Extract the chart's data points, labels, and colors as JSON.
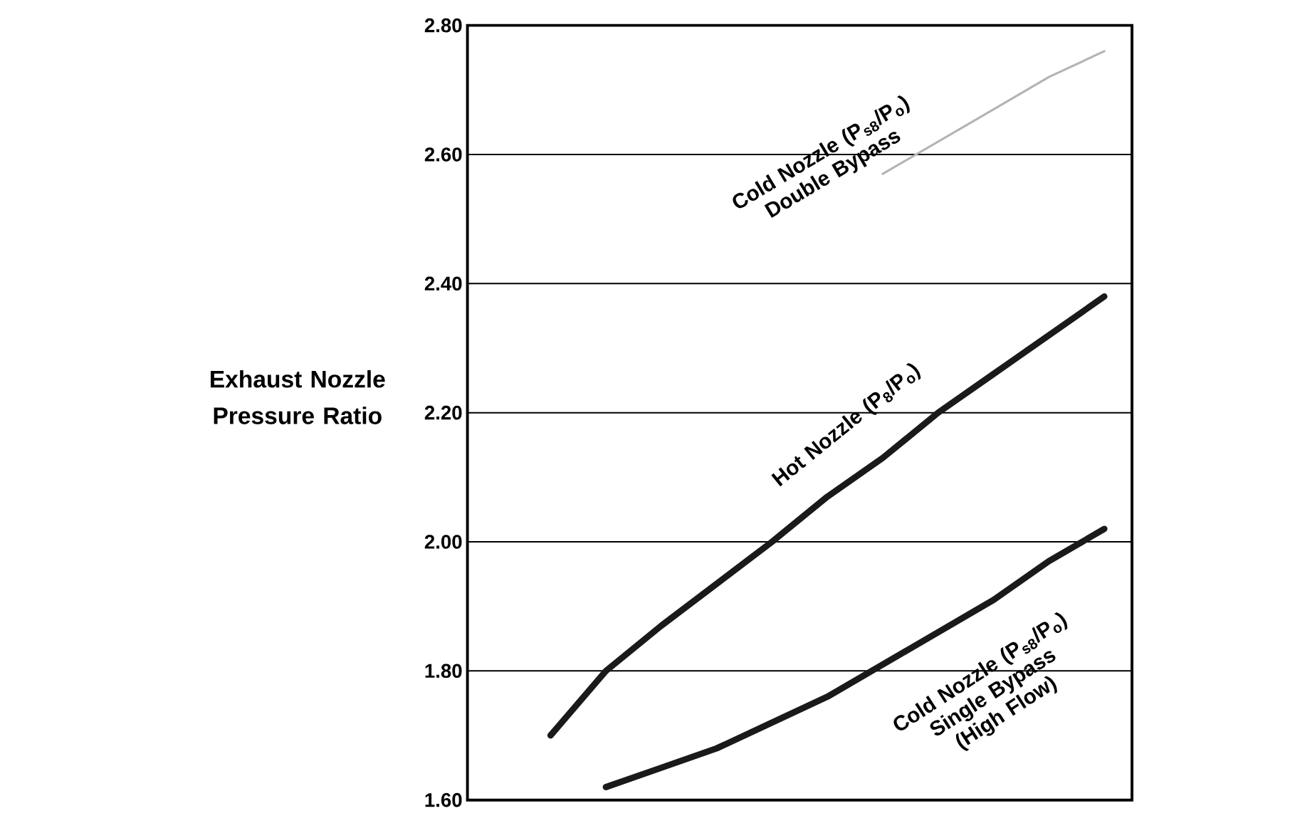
{
  "chart_data": {
    "type": "line",
    "ylabel": "Exhaust Nozzle Pressure Ratio",
    "categories": [
      null,
      null,
      null,
      null,
      null,
      null,
      null,
      null,
      null,
      null,
      null,
      null
    ],
    "series": [
      {
        "name": "Cold Nozzle (P$_{s8}$/P$_{o}$) Double Bypass",
        "color": "#b4b4b4",
        "values": [
          null,
          null,
          null,
          null,
          null,
          null,
          null,
          2.57,
          2.62,
          2.67,
          2.72,
          2.76
        ]
      },
      {
        "name": "Hot Nozzle (P$_{8}$/P$_{o}$)",
        "color": "#1a1a1a",
        "values": [
          null,
          1.7,
          1.8,
          1.87,
          1.935,
          2.0,
          2.07,
          2.13,
          2.2,
          2.26,
          2.32,
          2.38
        ]
      },
      {
        "name": "Cold Nozzle (P$_{s8}$/P$_{o}$) Single Bypass (High Flow)",
        "color": "#1a1a1a",
        "values": [
          null,
          null,
          1.62,
          1.65,
          1.68,
          1.72,
          1.76,
          1.81,
          1.86,
          1.91,
          1.97,
          2.02
        ]
      }
    ],
    "ylim": [
      1.6,
      2.8
    ],
    "yticks": [
      {
        "value": 1.6,
        "label": "1.60"
      },
      {
        "value": 1.8,
        "label": "1.80"
      },
      {
        "value": 2.0,
        "label": "2.00"
      },
      {
        "value": 2.2,
        "label": "2.20"
      },
      {
        "value": 2.4,
        "label": "2.40"
      },
      {
        "value": 2.6,
        "label": "2.60"
      },
      {
        "value": 2.8,
        "label": "2.80"
      }
    ],
    "grid": "y",
    "legend": false,
    "tick_labels": "y"
  }
}
